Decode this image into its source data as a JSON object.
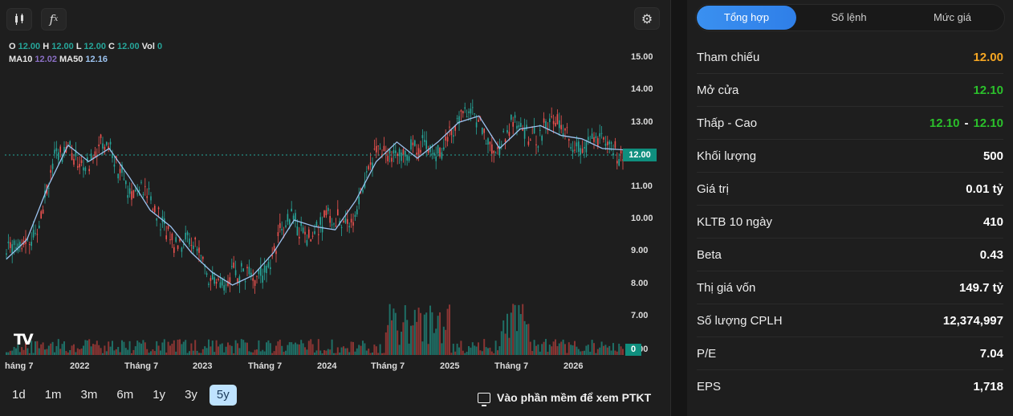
{
  "toolbar": {
    "candle_icon": "candlestick-icon",
    "fx_label": "f",
    "fx_sub": "x",
    "settings_icon": "gear-icon",
    "settings_glyph": "⚙"
  },
  "legend": {
    "o_label": "O",
    "o": "12.00",
    "h_label": "H",
    "h": "12.00",
    "l_label": "L",
    "l": "12.00",
    "c_label": "C",
    "c": "12.00",
    "vol_label": "Vol",
    "vol": "0",
    "ma10_label": "MA10",
    "ma10": "12.02",
    "ma50_label": "MA50",
    "ma50": "12.16"
  },
  "y_axis": [
    "15.00",
    "14.00",
    "13.00",
    "11.00",
    "10.00",
    "9.00",
    "8.00",
    "7.00",
    "0.00"
  ],
  "current_price": "12.00",
  "volume_badge": "0",
  "x_axis": [
    "háng 7",
    "2022",
    "Tháng 7",
    "2023",
    "Tháng 7",
    "2024",
    "Tháng 7",
    "2025",
    "Tháng 7",
    "2026"
  ],
  "logo_text": "TV",
  "ranges": [
    "1d",
    "1m",
    "3m",
    "6m",
    "1y",
    "3y",
    "5y"
  ],
  "active_range": "5y",
  "ptkt_label": "Vào phần mềm để xem PTKT",
  "colors": {
    "up": "#26a69a",
    "down": "#ef5350",
    "ma10": "#8a6fc4",
    "ma50": "#9cc3f0",
    "accent": "#2f7fe8",
    "ref": "#f5a623",
    "green": "#2bc02b"
  },
  "chart_data": {
    "type": "line",
    "ylim": [
      7,
      15
    ],
    "series": [
      {
        "name": "MA50",
        "values": [
          8.8,
          9.4,
          11.0,
          12.3,
          11.8,
          12.2,
          11.3,
          10.3,
          9.8,
          9.0,
          8.4,
          8.0,
          8.3,
          9.0,
          10.0,
          9.8,
          9.7,
          10.6,
          11.8,
          12.4,
          11.9,
          12.4,
          13.0,
          13.2,
          12.2,
          12.8,
          12.9,
          12.6,
          12.5,
          12.2,
          12.16
        ]
      }
    ]
  },
  "tabs": [
    "Tổng hợp",
    "Số lệnh",
    "Mức giá"
  ],
  "active_tab": "Tổng hợp",
  "stats": [
    {
      "label": "Tham chiếu",
      "value": "12.00",
      "tone": "ref"
    },
    {
      "label": "Mở cửa",
      "value": "12.10",
      "tone": "up"
    },
    {
      "label": "Thấp - Cao",
      "low": "12.10",
      "sep": "-",
      "high": "12.10",
      "tone": "up"
    },
    {
      "label": "Khối lượng",
      "value": "500"
    },
    {
      "label": "Giá trị",
      "value": "0.01 tỷ"
    },
    {
      "label": "KLTB 10 ngày",
      "value": "410"
    },
    {
      "label": "Beta",
      "value": "0.43"
    },
    {
      "label": "Thị giá vốn",
      "value": "149.7 tỷ"
    },
    {
      "label": "Số lượng CPLH",
      "value": "12,374,997"
    },
    {
      "label": "P/E",
      "value": "7.04"
    },
    {
      "label": "EPS",
      "value": "1,718"
    }
  ]
}
